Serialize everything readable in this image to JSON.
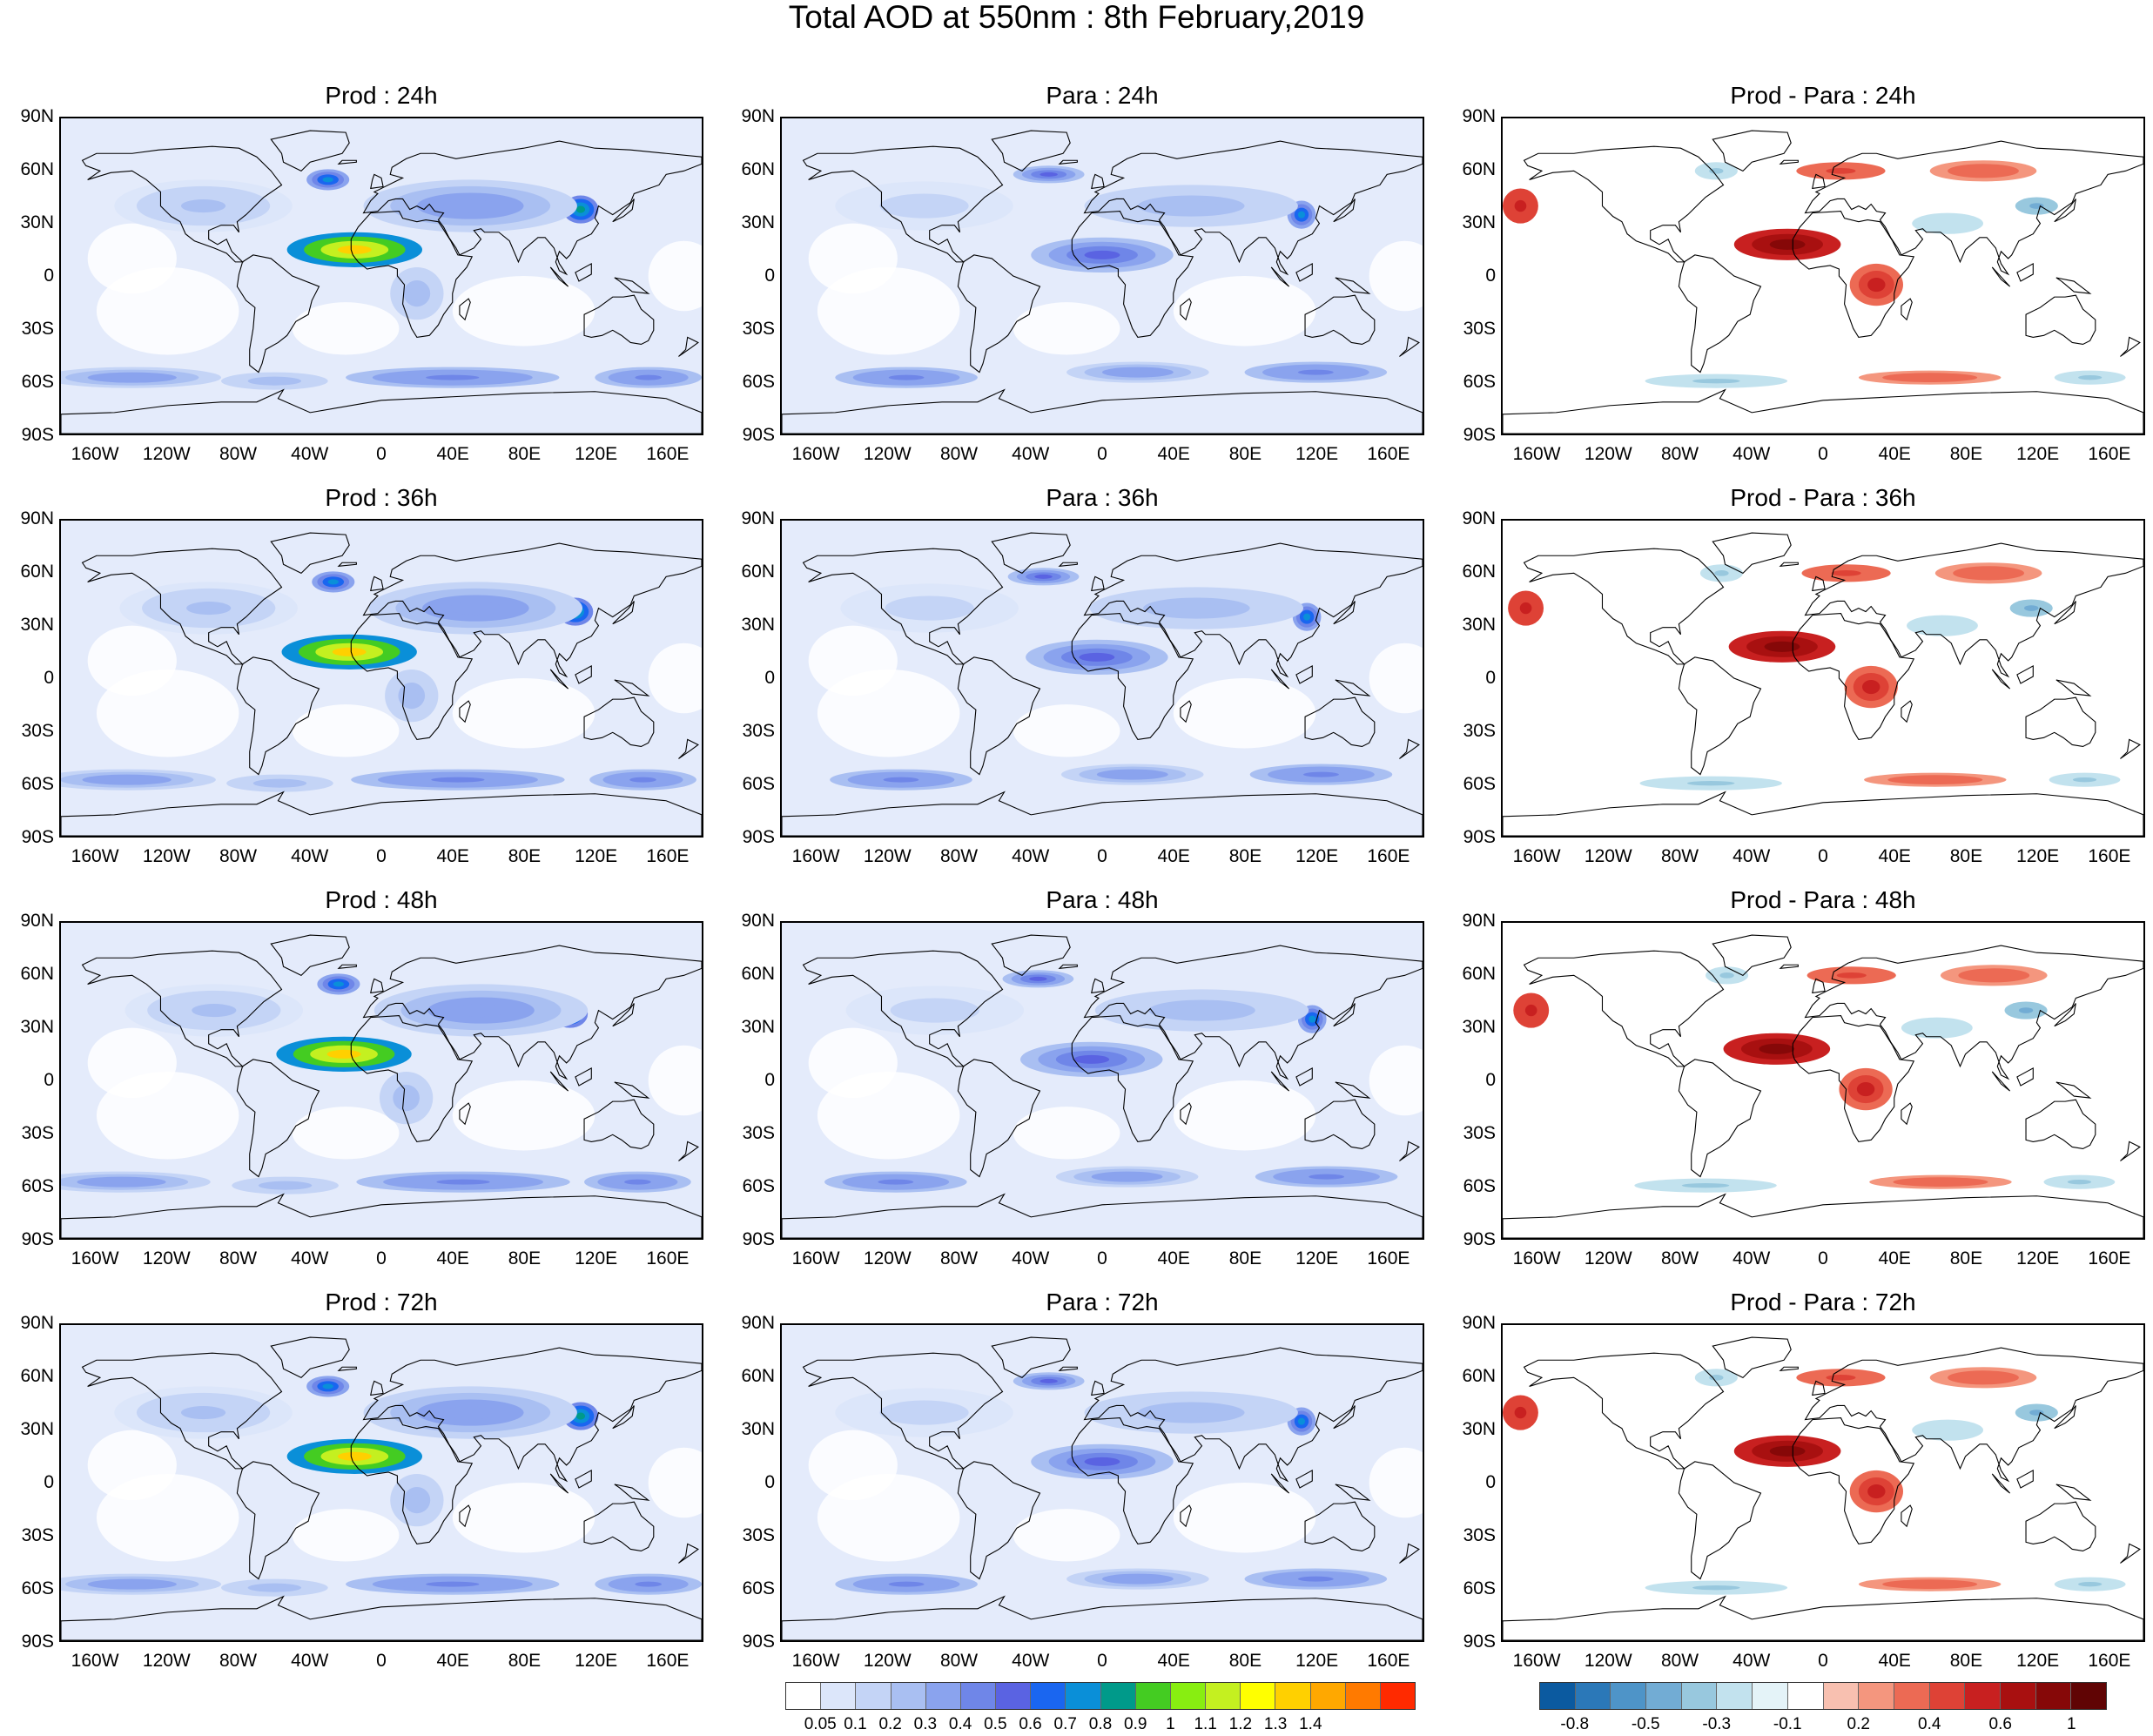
{
  "title": "Total AOD at 550nm : 8th February,2019",
  "panels": [
    [
      "Prod : 24h",
      "Para : 24h",
      "Prod - Para : 24h"
    ],
    [
      "Prod : 36h",
      "Para : 36h",
      "Prod - Para : 36h"
    ],
    [
      "Prod : 48h",
      "Para : 48h",
      "Prod - Para : 48h"
    ],
    [
      "Prod : 72h",
      "Para : 72h",
      "Prod - Para : 72h"
    ]
  ],
  "lat_labels": [
    "90N",
    "60N",
    "30N",
    "0",
    "30S",
    "60S",
    "90S"
  ],
  "lon_labels": [
    "160W",
    "120W",
    "80W",
    "40W",
    "0",
    "40E",
    "80E",
    "120E",
    "160E"
  ],
  "aod_colorbar": {
    "labels": [
      "0.05",
      "0.1",
      "0.2",
      "0.3",
      "0.4",
      "0.5",
      "0.6",
      "0.7",
      "0.8",
      "0.9",
      "1",
      "1.1",
      "1.2",
      "1.3",
      "1.4"
    ],
    "colors": [
      "#ffffff",
      "#dce6fa",
      "#c4d4f6",
      "#a9bff2",
      "#8aa3ee",
      "#6f86e8",
      "#5a63e2",
      "#1a66f0",
      "#0a8fd8",
      "#009a8a",
      "#44cc22",
      "#88ee11",
      "#c4f020",
      "#ffff00",
      "#ffd000",
      "#ffa800",
      "#ff7a00",
      "#ff2a00"
    ]
  },
  "diff_colorbar": {
    "labels": [
      "-0.8",
      "-0.5",
      "-0.3",
      "-0.1",
      "0.2",
      "0.4",
      "0.6",
      "1"
    ],
    "colors": [
      "#0b5aa0",
      "#2b78b8",
      "#4e94c8",
      "#72acd4",
      "#98c8de",
      "#c2e2ee",
      "#e4f3f8",
      "#ffffff",
      "#f8c0b0",
      "#f4967e",
      "#ec6a54",
      "#de4236",
      "#c82020",
      "#a81010",
      "#860808",
      "#600404"
    ]
  }
}
